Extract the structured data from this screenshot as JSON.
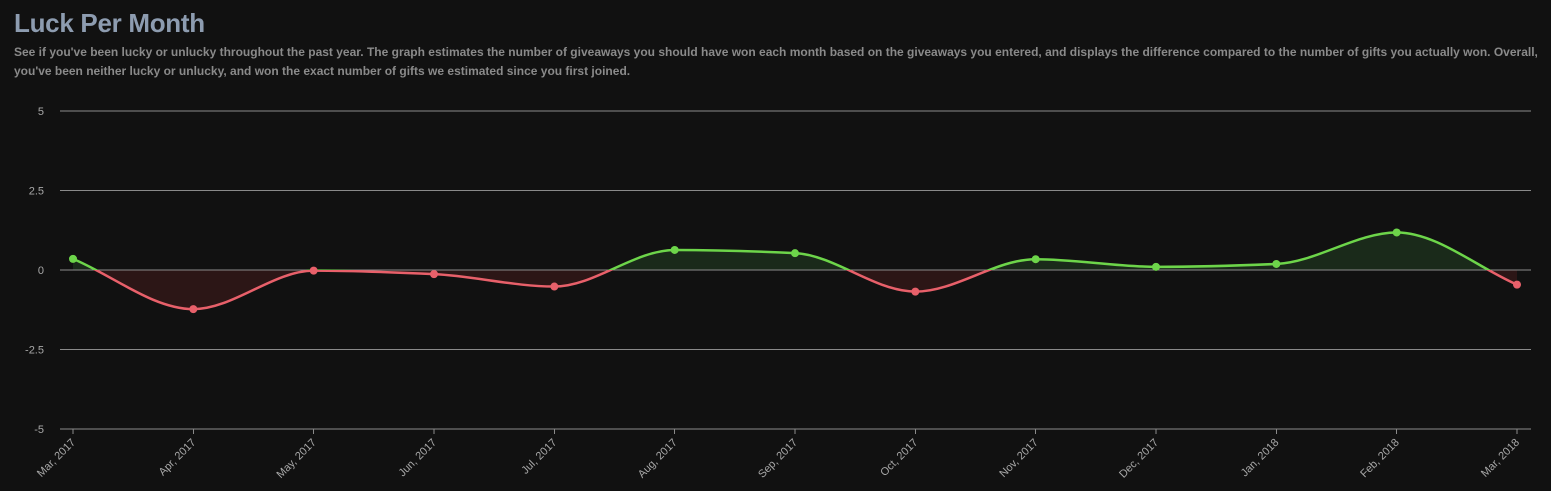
{
  "header": {
    "title": "Luck Per Month",
    "description": "See if you've been lucky or unlucky throughout the past year. The graph estimates the number of giveaways you should have won each month based on the giveaways you entered, and displays the difference compared to the number of gifts you actually won. Overall, you've been neither lucky or unlucky, and won the exact number of gifts we estimated since you first joined."
  },
  "colors": {
    "positive": "#6dd54a",
    "negative": "#e8606a",
    "positive_fill": "#1a2a1a",
    "negative_fill": "#2c1616",
    "grid": "#8a8a8a",
    "background": "#111111"
  },
  "chart_data": {
    "type": "area",
    "title": "Luck Per Month",
    "xlabel": "",
    "ylabel": "",
    "categories": [
      "Mar, 2017",
      "Apr, 2017",
      "May, 2017",
      "Jun, 2017",
      "Jul, 2017",
      "Aug, 2017",
      "Sep, 2017",
      "Oct, 2017",
      "Nov, 2017",
      "Dec, 2017",
      "Jan, 2018",
      "Feb, 2018",
      "Mar, 2018"
    ],
    "values": [
      0.35,
      -1.23,
      -0.02,
      -0.13,
      -0.52,
      0.63,
      0.53,
      -0.68,
      0.34,
      0.1,
      0.19,
      1.18,
      -0.46
    ],
    "ylim": [
      -5,
      5
    ],
    "yticks": [
      5,
      2.5,
      0,
      -2.5,
      -5
    ],
    "ytick_labels": [
      "5",
      "2.5",
      "0",
      "-2.5",
      "-5"
    ],
    "grid": true,
    "legend": "none"
  }
}
